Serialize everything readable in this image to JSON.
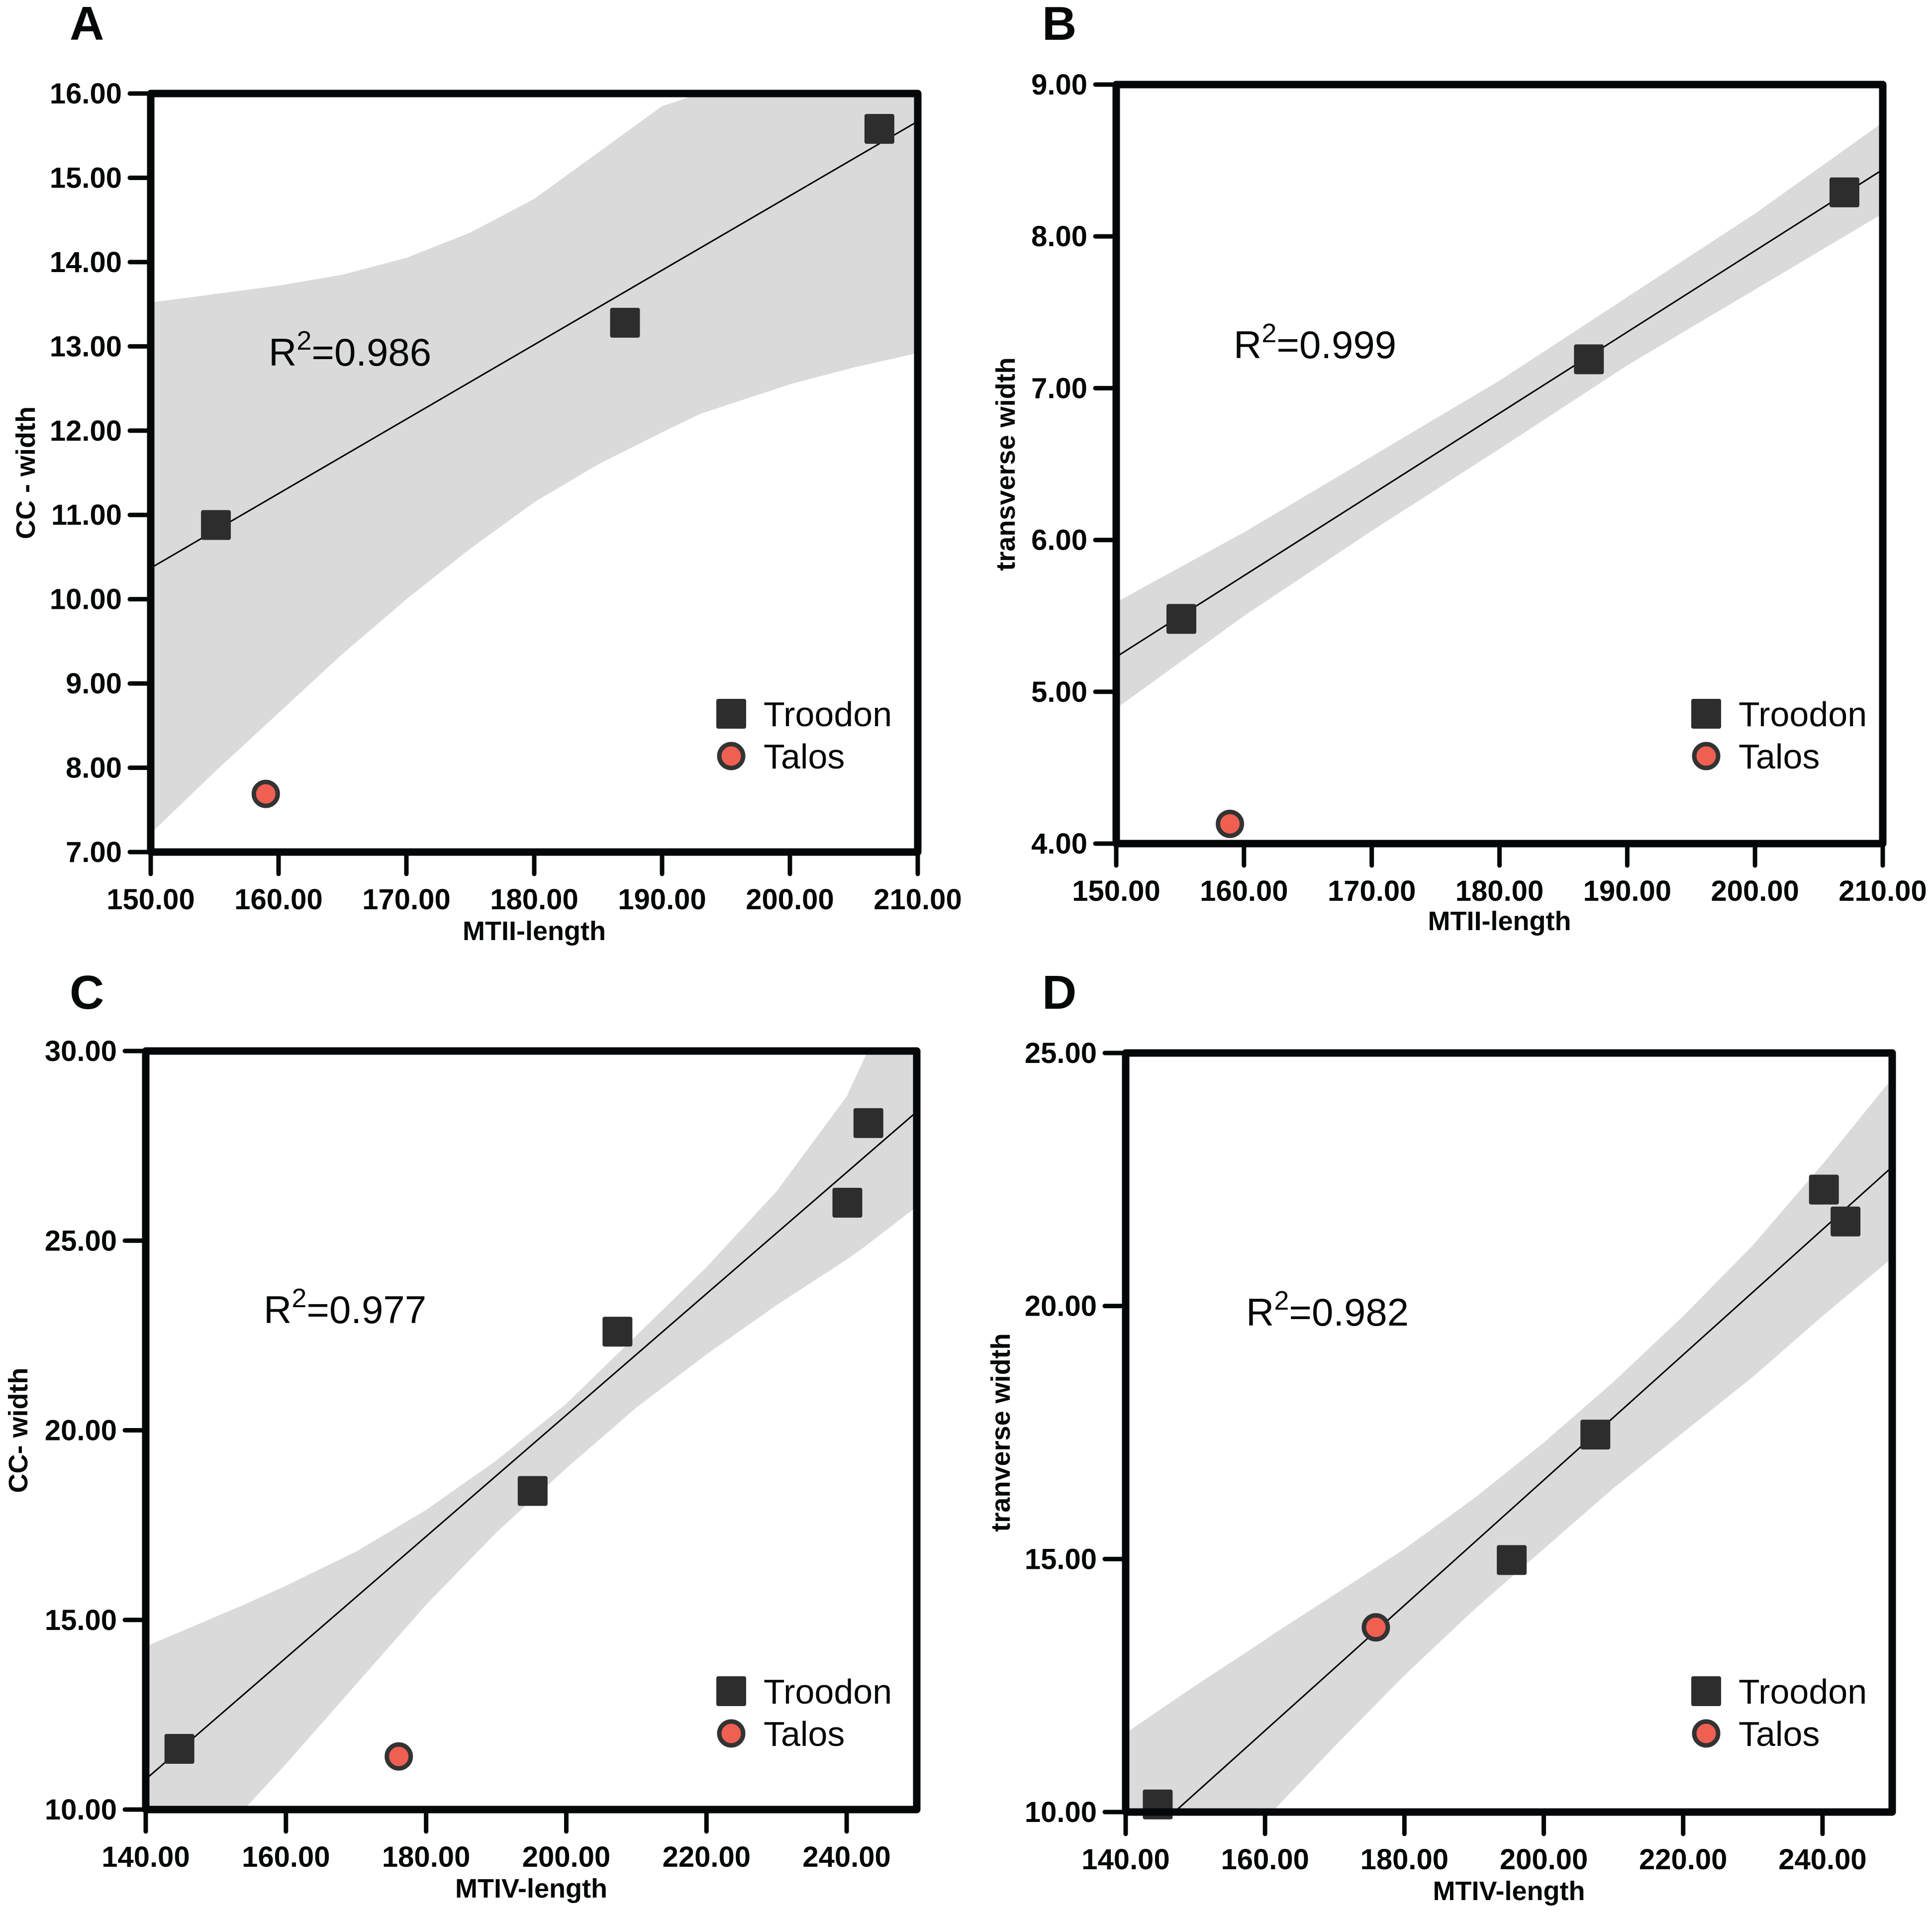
{
  "figure": {
    "colors": {
      "troodon_marker": "#2c2d2c",
      "talos_fill": "#f06052",
      "talos_stroke": "#333333",
      "confidence_band": "#dadada",
      "frame": "#050809",
      "fit_line": "#000000"
    }
  },
  "chart_data": [
    {
      "panel": "A",
      "type": "scatter",
      "title": "",
      "xlabel": "MTII-length",
      "ylabel": "CC - width",
      "xlim": [
        150,
        210
      ],
      "ylim": [
        7,
        16
      ],
      "xticks": [
        "150.00",
        "160.00",
        "170.00",
        "180.00",
        "190.00",
        "200.00",
        "210.00"
      ],
      "yticks": [
        "7.00",
        "8.00",
        "9.00",
        "10.00",
        "11.00",
        "12.00",
        "13.00",
        "14.00",
        "15.00",
        "16.00"
      ],
      "xtick_values": [
        150,
        160,
        170,
        180,
        190,
        200,
        210
      ],
      "ytick_values": [
        7,
        8,
        9,
        10,
        11,
        12,
        13,
        14,
        15,
        16
      ],
      "annotation": {
        "prefix": "R",
        "sup": "2",
        "suffix": "=0.986"
      },
      "legend": {
        "position": "bottom-right",
        "entries": [
          "Troodon",
          "Talos"
        ]
      },
      "series": [
        {
          "name": "Troodon",
          "marker": "square",
          "x": [
            155.1,
            187.1,
            207.0
          ],
          "y": [
            10.88,
            13.28,
            15.58
          ]
        },
        {
          "name": "Talos",
          "marker": "circle",
          "x": [
            159.0
          ],
          "y": [
            7.69
          ]
        }
      ],
      "fit_line": {
        "x": [
          150,
          210
        ],
        "y": [
          10.37,
          15.67
        ]
      },
      "confidence_band": {
        "x": [
          150,
          155,
          160,
          165,
          170,
          175,
          180,
          185,
          190,
          193,
          200,
          205,
          210
        ],
        "upper": [
          13.52,
          13.62,
          13.72,
          13.85,
          14.05,
          14.35,
          14.75,
          15.3,
          15.85,
          16.0,
          16.0,
          16.0,
          16.0
        ],
        "lower": [
          7.22,
          7.95,
          8.65,
          9.35,
          10.0,
          10.6,
          11.15,
          11.6,
          11.98,
          12.2,
          12.55,
          12.75,
          12.92
        ]
      }
    },
    {
      "panel": "B",
      "type": "scatter",
      "title": "",
      "xlabel": "MTII-length",
      "ylabel": "transverse width",
      "xlim": [
        150,
        210
      ],
      "ylim": [
        4,
        9
      ],
      "xticks": [
        "150.00",
        "160.00",
        "170.00",
        "180.00",
        "190.00",
        "200.00",
        "210.00"
      ],
      "yticks": [
        "4.00",
        "5.00",
        "6.00",
        "7.00",
        "8.00",
        "9.00"
      ],
      "xtick_values": [
        150,
        160,
        170,
        180,
        190,
        200,
        210
      ],
      "ytick_values": [
        4,
        5,
        6,
        7,
        8,
        9
      ],
      "annotation": {
        "prefix": "R",
        "sup": "2",
        "suffix": "=0.999"
      },
      "legend": {
        "position": "bottom-right",
        "entries": [
          "Troodon",
          "Talos"
        ]
      },
      "series": [
        {
          "name": "Troodon",
          "marker": "square",
          "x": [
            155.1,
            187.0,
            207.0
          ],
          "y": [
            5.48,
            7.19,
            8.29
          ]
        },
        {
          "name": "Talos",
          "marker": "circle",
          "x": [
            158.9
          ],
          "y": [
            4.13
          ]
        }
      ],
      "fit_line": {
        "x": [
          150,
          210
        ],
        "y": [
          5.23,
          8.44
        ]
      },
      "confidence_band": {
        "x": [
          150,
          160,
          170,
          180,
          190,
          200,
          210
        ],
        "upper": [
          5.59,
          6.05,
          6.55,
          7.05,
          7.6,
          8.15,
          8.75
        ],
        "lower": [
          4.89,
          5.5,
          6.06,
          6.6,
          7.15,
          7.65,
          8.15
        ]
      }
    },
    {
      "panel": "C",
      "type": "scatter",
      "title": "",
      "xlabel": "MTIV-length",
      "ylabel": "CC- width",
      "xlim": [
        140,
        250
      ],
      "ylim": [
        10,
        30
      ],
      "xticks": [
        "140.00",
        "160.00",
        "180.00",
        "200.00",
        "220.00",
        "240.00"
      ],
      "yticks": [
        "10.00",
        "15.00",
        "20.00",
        "25.00",
        "30.00"
      ],
      "xtick_values": [
        140,
        160,
        180,
        200,
        220,
        240
      ],
      "ytick_values": [
        10,
        15,
        20,
        25,
        30
      ],
      "annotation": {
        "prefix": "R",
        "sup": "2",
        "suffix": "=0.977"
      },
      "legend": {
        "position": "bottom-right",
        "entries": [
          "Troodon",
          "Talos"
        ]
      },
      "series": [
        {
          "name": "Troodon",
          "marker": "square",
          "x": [
            144.8,
            195.2,
            207.3,
            240.1,
            243.1
          ],
          "y": [
            11.6,
            18.4,
            22.6,
            26.0,
            28.1
          ]
        },
        {
          "name": "Talos",
          "marker": "circle",
          "x": [
            176.1
          ],
          "y": [
            11.4
          ]
        }
      ],
      "fit_line": {
        "x": [
          140,
          250
        ],
        "y": [
          10.8,
          28.4
        ]
      },
      "confidence_band": {
        "x": [
          140,
          154,
          160,
          170,
          180,
          190,
          200,
          210,
          220,
          230,
          240,
          243,
          250
        ],
        "upper": [
          14.3,
          15.4,
          15.9,
          16.8,
          17.9,
          19.2,
          20.7,
          22.5,
          24.3,
          26.3,
          28.8,
          30.0,
          30.0
        ],
        "lower": [
          10.0,
          10.0,
          11.2,
          13.3,
          15.4,
          17.3,
          19.0,
          20.6,
          22.0,
          23.3,
          24.5,
          24.9,
          25.9
        ]
      }
    },
    {
      "panel": "D",
      "type": "scatter",
      "title": "",
      "xlabel": "MTIV-length",
      "ylabel": "tranverse width",
      "xlim": [
        140,
        250
      ],
      "ylim": [
        10,
        25
      ],
      "xticks": [
        "140.00",
        "160.00",
        "180.00",
        "200.00",
        "220.00",
        "240.00"
      ],
      "yticks": [
        "10.00",
        "15.00",
        "20.00",
        "25.00"
      ],
      "xtick_values": [
        140,
        160,
        180,
        200,
        220,
        240
      ],
      "ytick_values": [
        10,
        15,
        20,
        25
      ],
      "annotation": {
        "prefix": "R",
        "sup": "2",
        "suffix": "=0.982"
      },
      "legend": {
        "position": "bottom-right",
        "entries": [
          "Troodon",
          "Talos"
        ]
      },
      "series": [
        {
          "name": "Troodon",
          "marker": "square",
          "x": [
            144.6,
            195.4,
            207.4,
            240.2,
            243.3
          ],
          "y": [
            10.15,
            14.98,
            17.46,
            22.3,
            21.67
          ]
        },
        {
          "name": "Talos",
          "marker": "circle",
          "x": [
            175.9
          ],
          "y": [
            13.65
          ]
        }
      ],
      "fit_line": {
        "x": [
          147,
          250
        ],
        "y": [
          10.0,
          22.75
        ]
      },
      "confidence_band": {
        "x": [
          140,
          150,
          160,
          161,
          170,
          180,
          190,
          200,
          210,
          220,
          230,
          240,
          250
        ],
        "upper": [
          11.56,
          12.5,
          13.4,
          13.5,
          14.3,
          15.2,
          16.2,
          17.3,
          18.5,
          19.8,
          21.2,
          22.8,
          24.5
        ],
        "lower": [
          10.0,
          10.0,
          10.0,
          10.0,
          11.3,
          12.7,
          14.0,
          15.2,
          16.4,
          17.5,
          18.6,
          19.8,
          20.95
        ]
      }
    }
  ]
}
